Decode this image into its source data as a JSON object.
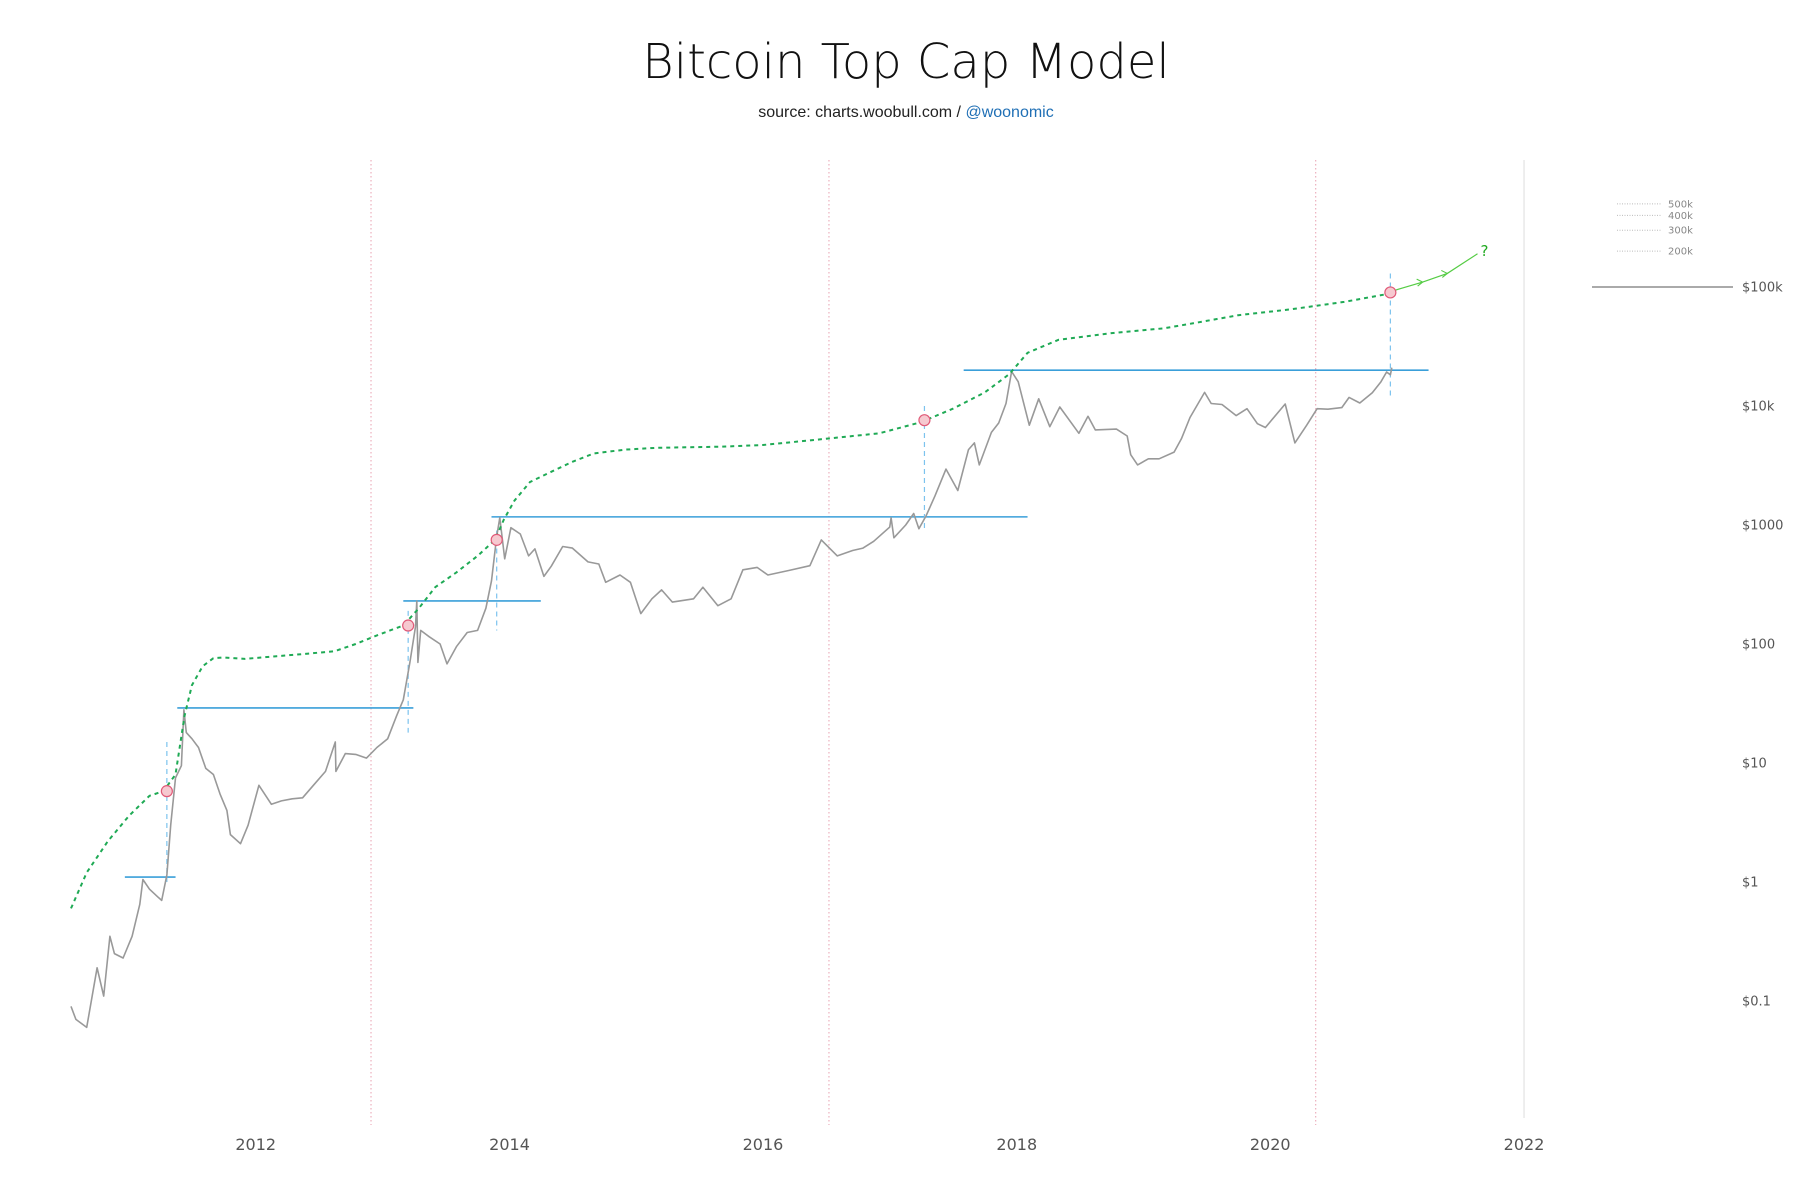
{
  "chart_data": {
    "type": "line",
    "title": "Bitcoin Top Cap Model",
    "source": {
      "prefix": "source: charts.woobull.com / ",
      "handle": "@woonomic"
    },
    "y_scale": "log",
    "ylim": [
      0.01,
      1000000
    ],
    "xlim": [
      "2010-07-15",
      "2022-12-01"
    ],
    "y_ticks": [
      {
        "value": 0.1,
        "label": "$0.1"
      },
      {
        "value": 1,
        "label": "$1"
      },
      {
        "value": 10,
        "label": "$10"
      },
      {
        "value": 100,
        "label": "$100"
      },
      {
        "value": 1000,
        "label": "$1000"
      },
      {
        "value": 10000,
        "label": "$10k"
      },
      {
        "value": 100000,
        "label": "$100k"
      }
    ],
    "x_ticks": [
      "2012",
      "2014",
      "2016",
      "2018",
      "2020",
      "2022"
    ],
    "grid": false,
    "series": [
      {
        "name": "",
        "style": "price",
        "color": "#999999",
        "points": [
          [
            "2010-07-18",
            0.09
          ],
          [
            "2010-08-01",
            0.07
          ],
          [
            "2010-09-01",
            0.06
          ],
          [
            "2010-10-01",
            0.19
          ],
          [
            "2010-10-20",
            0.11
          ],
          [
            "2010-11-07",
            0.35
          ],
          [
            "2010-11-20",
            0.25
          ],
          [
            "2010-12-15",
            0.23
          ],
          [
            "2011-01-10",
            0.35
          ],
          [
            "2011-02-01",
            0.65
          ],
          [
            "2011-02-10",
            1.05
          ],
          [
            "2011-03-01",
            0.87
          ],
          [
            "2011-03-25",
            0.75
          ],
          [
            "2011-04-05",
            0.7
          ],
          [
            "2011-04-20",
            1.15
          ],
          [
            "2011-05-01",
            3.0
          ],
          [
            "2011-05-15",
            7.5
          ],
          [
            "2011-06-01",
            9.5
          ],
          [
            "2011-06-08",
            28.0
          ],
          [
            "2011-06-15",
            18.0
          ],
          [
            "2011-07-01",
            16.0
          ],
          [
            "2011-07-20",
            13.5
          ],
          [
            "2011-08-10",
            9.0
          ],
          [
            "2011-09-01",
            8.0
          ],
          [
            "2011-09-20",
            5.5
          ],
          [
            "2011-10-10",
            4.0
          ],
          [
            "2011-10-20",
            2.5
          ],
          [
            "2011-11-18",
            2.1
          ],
          [
            "2011-12-10",
            3.0
          ],
          [
            "2012-01-10",
            6.5
          ],
          [
            "2012-02-15",
            4.5
          ],
          [
            "2012-03-15",
            4.8
          ],
          [
            "2012-04-15",
            5.0
          ],
          [
            "2012-05-15",
            5.1
          ],
          [
            "2012-06-15",
            6.5
          ],
          [
            "2012-07-20",
            8.5
          ],
          [
            "2012-08-17",
            15.0
          ],
          [
            "2012-08-19",
            8.5
          ],
          [
            "2012-09-15",
            12.0
          ],
          [
            "2012-10-15",
            11.8
          ],
          [
            "2012-11-15",
            11.0
          ],
          [
            "2012-12-15",
            13.5
          ],
          [
            "2013-01-15",
            16.0
          ],
          [
            "2013-02-10",
            25.0
          ],
          [
            "2013-03-01",
            34.0
          ],
          [
            "2013-03-20",
            70.0
          ],
          [
            "2013-04-05",
            140.0
          ],
          [
            "2013-04-09",
            230.0
          ],
          [
            "2013-04-12",
            70.0
          ],
          [
            "2013-04-20",
            130.0
          ],
          [
            "2013-05-15",
            115.0
          ],
          [
            "2013-06-15",
            100.0
          ],
          [
            "2013-07-05",
            68.0
          ],
          [
            "2013-08-01",
            95.0
          ],
          [
            "2013-09-01",
            125.0
          ],
          [
            "2013-10-01",
            130.0
          ],
          [
            "2013-10-25",
            200.0
          ],
          [
            "2013-11-10",
            340.0
          ],
          [
            "2013-11-25",
            800.0
          ],
          [
            "2013-12-04",
            1150.0
          ],
          [
            "2013-12-18",
            520.0
          ],
          [
            "2014-01-05",
            950.0
          ],
          [
            "2014-02-01",
            840.0
          ],
          [
            "2014-02-25",
            550.0
          ],
          [
            "2014-03-15",
            630.0
          ],
          [
            "2014-04-10",
            370.0
          ],
          [
            "2014-05-01",
            450.0
          ],
          [
            "2014-06-03",
            660.0
          ],
          [
            "2014-07-01",
            640.0
          ],
          [
            "2014-08-15",
            490.0
          ],
          [
            "2014-09-15",
            470.0
          ],
          [
            "2014-10-05",
            330.0
          ],
          [
            "2014-11-15",
            380.0
          ],
          [
            "2014-12-15",
            330.0
          ],
          [
            "2015-01-14",
            180.0
          ],
          [
            "2015-02-15",
            240.0
          ],
          [
            "2015-03-15",
            285.0
          ],
          [
            "2015-04-15",
            225.0
          ],
          [
            "2015-06-15",
            240.0
          ],
          [
            "2015-07-12",
            300.0
          ],
          [
            "2015-08-24",
            210.0
          ],
          [
            "2015-10-01",
            240.0
          ],
          [
            "2015-11-04",
            420.0
          ],
          [
            "2015-12-15",
            440.0
          ],
          [
            "2016-01-15",
            380.0
          ],
          [
            "2016-03-15",
            415.0
          ],
          [
            "2016-05-15",
            455.0
          ],
          [
            "2016-06-17",
            750.0
          ],
          [
            "2016-08-02",
            550.0
          ],
          [
            "2016-09-15",
            610.0
          ],
          [
            "2016-10-15",
            640.0
          ],
          [
            "2016-11-15",
            730.0
          ],
          [
            "2016-12-31",
            960.0
          ],
          [
            "2017-01-04",
            1150.0
          ],
          [
            "2017-01-12",
            780.0
          ],
          [
            "2017-02-15",
            1000.0
          ],
          [
            "2017-03-10",
            1250.0
          ],
          [
            "2017-03-25",
            930.0
          ],
          [
            "2017-04-15",
            1200.0
          ],
          [
            "2017-05-10",
            1750.0
          ],
          [
            "2017-06-11",
            2950.0
          ],
          [
            "2017-07-15",
            1950.0
          ],
          [
            "2017-08-15",
            4300.0
          ],
          [
            "2017-09-01",
            4900.0
          ],
          [
            "2017-09-15",
            3200.0
          ],
          [
            "2017-10-20",
            6000.0
          ],
          [
            "2017-11-10",
            7200.0
          ],
          [
            "2017-12-01",
            10500.0
          ],
          [
            "2017-12-17",
            19500.0
          ],
          [
            "2018-01-05",
            16000.0
          ],
          [
            "2018-02-06",
            6900.0
          ],
          [
            "2018-03-05",
            11500.0
          ],
          [
            "2018-04-06",
            6700.0
          ],
          [
            "2018-05-05",
            9800.0
          ],
          [
            "2018-06-29",
            5900.0
          ],
          [
            "2018-07-25",
            8200.0
          ],
          [
            "2018-08-15",
            6300.0
          ],
          [
            "2018-10-15",
            6400.0
          ],
          [
            "2018-11-15",
            5600.0
          ],
          [
            "2018-11-25",
            3900.0
          ],
          [
            "2018-12-15",
            3200.0
          ],
          [
            "2019-01-15",
            3600.0
          ],
          [
            "2019-02-15",
            3600.0
          ],
          [
            "2019-03-30",
            4100.0
          ],
          [
            "2019-04-20",
            5300.0
          ],
          [
            "2019-05-15",
            8000.0
          ],
          [
            "2019-06-26",
            13000.0
          ],
          [
            "2019-07-15",
            10500.0
          ],
          [
            "2019-08-15",
            10300.0
          ],
          [
            "2019-09-25",
            8300.0
          ],
          [
            "2019-10-26",
            9500.0
          ],
          [
            "2019-11-25",
            7100.0
          ],
          [
            "2019-12-18",
            6600.0
          ],
          [
            "2020-02-13",
            10400.0
          ],
          [
            "2020-03-12",
            4900.0
          ],
          [
            "2020-04-15",
            6900.0
          ],
          [
            "2020-05-15",
            9500.0
          ],
          [
            "2020-06-15",
            9400.0
          ],
          [
            "2020-07-25",
            9700.0
          ],
          [
            "2020-08-15",
            11800.0
          ],
          [
            "2020-09-15",
            10600.0
          ],
          [
            "2020-10-21",
            12900.0
          ],
          [
            "2020-11-15",
            16000.0
          ],
          [
            "2020-12-01",
            19300.0
          ],
          [
            "2020-12-12",
            18300.0
          ],
          [
            "2020-12-16",
            21000.0
          ]
        ]
      },
      {
        "name": "",
        "style": "top-cap",
        "color": "#1faa55",
        "points": [
          [
            "2010-07-18",
            0.6
          ],
          [
            "2010-09-01",
            1.2
          ],
          [
            "2010-11-01",
            2.2
          ],
          [
            "2011-01-01",
            3.6
          ],
          [
            "2011-03-01",
            5.3
          ],
          [
            "2011-04-10",
            5.8
          ],
          [
            "2011-05-15",
            8.0
          ],
          [
            "2011-06-10",
            25.0
          ],
          [
            "2011-07-01",
            45.0
          ],
          [
            "2011-08-01",
            65.0
          ],
          [
            "2011-09-01",
            76.0
          ],
          [
            "2011-10-01",
            77.0
          ],
          [
            "2011-12-01",
            75.0
          ],
          [
            "2012-03-01",
            79.0
          ],
          [
            "2012-06-01",
            83.0
          ],
          [
            "2012-08-15",
            87.0
          ],
          [
            "2012-10-15",
            100.0
          ],
          [
            "2012-12-15",
            118.0
          ],
          [
            "2013-03-01",
            143.0
          ],
          [
            "2013-04-15",
            200.0
          ],
          [
            "2013-06-01",
            300.0
          ],
          [
            "2013-08-01",
            400.0
          ],
          [
            "2013-10-01",
            550.0
          ],
          [
            "2013-11-20",
            750.0
          ],
          [
            "2013-12-15",
            1100.0
          ],
          [
            "2014-01-15",
            1600.0
          ],
          [
            "2014-03-01",
            2300.0
          ],
          [
            "2014-05-01",
            2800.0
          ],
          [
            "2014-07-01",
            3400.0
          ],
          [
            "2014-09-01",
            4000.0
          ],
          [
            "2014-12-01",
            4300.0
          ],
          [
            "2015-03-01",
            4450.0
          ],
          [
            "2015-09-01",
            4550.0
          ],
          [
            "2016-01-01",
            4700.0
          ],
          [
            "2016-06-01",
            5200.0
          ],
          [
            "2016-12-01",
            5900.0
          ],
          [
            "2017-03-30",
            7300.0
          ],
          [
            "2017-07-01",
            9500.0
          ],
          [
            "2017-10-01",
            13000.0
          ],
          [
            "2017-12-10",
            18500.0
          ],
          [
            "2018-02-01",
            28000.0
          ],
          [
            "2018-05-01",
            36000.0
          ],
          [
            "2018-10-01",
            41000.0
          ],
          [
            "2019-03-01",
            45000.0
          ],
          [
            "2019-06-01",
            50000.0
          ],
          [
            "2019-10-01",
            58000.0
          ],
          [
            "2020-03-01",
            65000.0
          ],
          [
            "2020-08-01",
            75000.0
          ],
          [
            "2020-12-10",
            88000.0
          ]
        ]
      }
    ],
    "cycle_tops": [
      {
        "label": "",
        "value": 1.1,
        "from": "2010-12-20",
        "to": "2011-05-15"
      },
      {
        "label": "",
        "value": 29.0,
        "from": "2011-05-20",
        "to": "2013-03-30"
      },
      {
        "label": "",
        "value": 230.0,
        "from": "2013-03-01",
        "to": "2014-04-01"
      },
      {
        "label": "",
        "value": 1170.0,
        "from": "2013-11-10",
        "to": "2018-02-01"
      },
      {
        "label": "",
        "value": 20000.0,
        "from": "2017-08-01",
        "to": "2021-04-01"
      }
    ],
    "crossings": [
      {
        "date": "2011-04-20",
        "value": 5.8,
        "low": 1.0,
        "high": 15.0
      },
      {
        "date": "2013-03-15",
        "value": 143.0,
        "low": 18.0,
        "high": 190.0
      },
      {
        "date": "2013-11-25",
        "value": 750.0,
        "low": 130.0,
        "high": 900.0
      },
      {
        "date": "2017-04-10",
        "value": 7600.0,
        "low": 900.0,
        "high": 10000.0
      },
      {
        "date": "2020-12-12",
        "value": 90000.0,
        "low": 12000.0,
        "high": 130000.0
      }
    ],
    "halvings": [
      "2012-11-28",
      "2016-07-09",
      "2020-05-11"
    ],
    "extra_vline": "2022-01-01",
    "projection": {
      "points": [
        [
          "2020-12-15",
          92000.0
        ],
        [
          "2021-03-15",
          110000.0
        ],
        [
          "2021-05-25",
          130000.0
        ],
        [
          "2021-08-20",
          190000.0
        ]
      ],
      "label": "?"
    },
    "target_ticks": [
      {
        "value": 500000,
        "label": "500k"
      },
      {
        "value": 400000,
        "label": "400k"
      },
      {
        "value": 300000,
        "label": "300k"
      },
      {
        "value": 200000,
        "label": "200k"
      }
    ],
    "reference_line": {
      "value": 100000
    },
    "colors": {
      "price": "#999999",
      "top_cap": "#1faa55",
      "cycle_top": "#3a9fd9",
      "crossing": "#7cc3ee",
      "halving": "#e8a0b0",
      "marker_fill": "#f6c9d0",
      "marker_stroke": "#e05a78",
      "projection": "#55cc44"
    }
  }
}
